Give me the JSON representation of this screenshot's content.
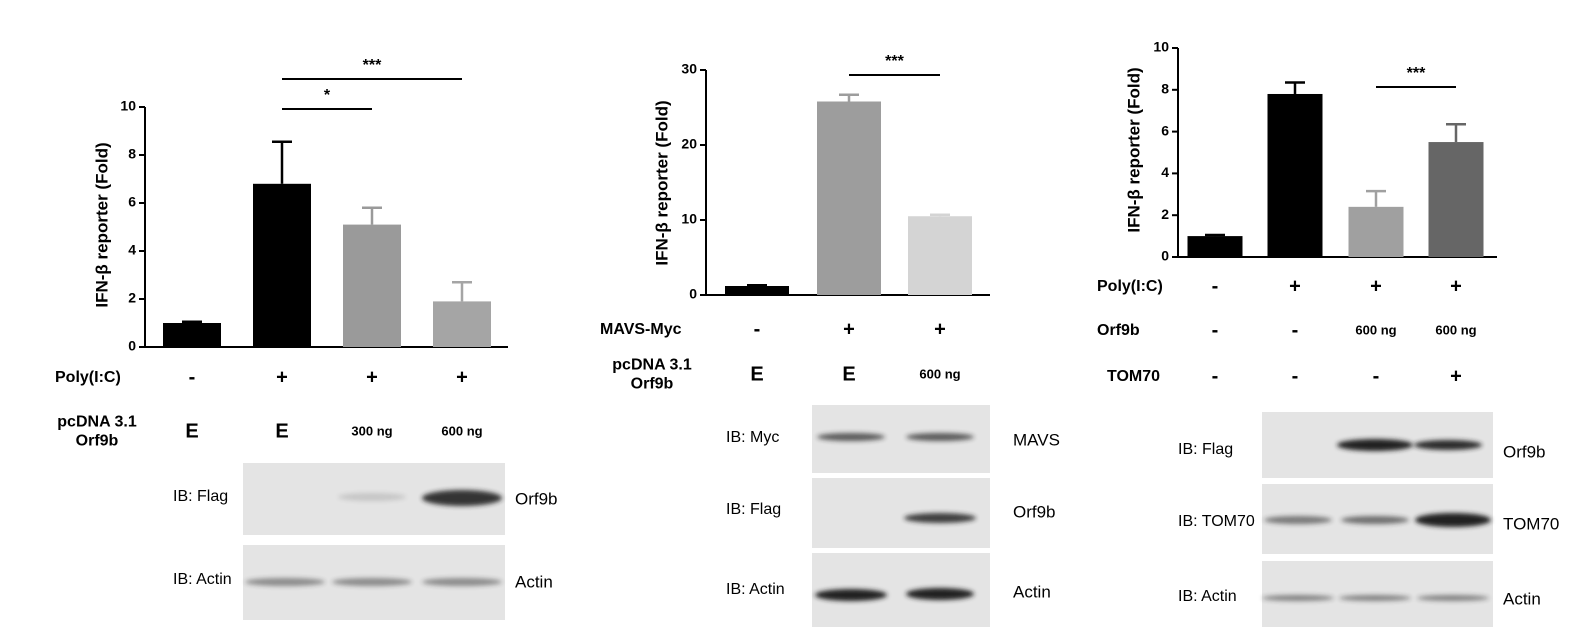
{
  "chart_data": [
    {
      "type": "bar",
      "y_label": "IFN-β reporter (Fold)",
      "values": [
        1.0,
        6.8,
        5.1,
        1.9
      ],
      "errors": [
        0.05,
        1.75,
        0.7,
        0.8
      ],
      "colors": [
        "#000000",
        "#000000",
        "#9a9a9a",
        "#a5a5a5"
      ],
      "ylim": [
        0,
        10
      ],
      "yticks": [
        0,
        2,
        4,
        6,
        8,
        10
      ],
      "significance": [
        {
          "label": "*",
          "from": 1,
          "to": 2
        },
        {
          "label": "***",
          "from": 1,
          "to": 3
        }
      ],
      "conditions": [
        {
          "label": [
            "Poly(I:C)"
          ],
          "values": [
            "-",
            "+",
            "+",
            "+"
          ]
        },
        {
          "label": [
            "pcDNA 3.1",
            "Orf9b"
          ],
          "values": [
            "E",
            "E",
            "300 ng",
            "600 ng"
          ]
        }
      ],
      "blots": [
        {
          "antibody": "IB: Flag",
          "protein": "Orf9b"
        },
        {
          "antibody": "IB: Actin",
          "protein": "Actin"
        }
      ]
    },
    {
      "type": "bar",
      "y_label": "IFN-β reporter (Fold)",
      "values": [
        1.2,
        25.8,
        10.5
      ],
      "errors": [
        0.1,
        0.9,
        0.2
      ],
      "colors": [
        "#000000",
        "#9d9d9d",
        "#d4d4d4"
      ],
      "ylim": [
        0,
        30
      ],
      "yticks": [
        0,
        10,
        20,
        30
      ],
      "significance": [
        {
          "label": "***",
          "from": 1,
          "to": 2
        }
      ],
      "conditions": [
        {
          "label": [
            "MAVS-Myc"
          ],
          "values": [
            "-",
            "+",
            "+"
          ]
        },
        {
          "label": [
            "pcDNA 3.1",
            "Orf9b"
          ],
          "values": [
            "E",
            "E",
            "600 ng"
          ]
        }
      ],
      "blots": [
        {
          "antibody": "IB: Myc",
          "protein": "MAVS"
        },
        {
          "antibody": "IB: Flag",
          "protein": "Orf9b"
        },
        {
          "antibody": "IB: Actin",
          "protein": "Actin"
        }
      ]
    },
    {
      "type": "bar",
      "y_label": "IFN-β reporter (Fold)",
      "values": [
        1.0,
        7.8,
        2.4,
        5.5
      ],
      "errors": [
        0.05,
        0.55,
        0.75,
        0.85
      ],
      "colors": [
        "#000000",
        "#000000",
        "#a0a0a0",
        "#666666"
      ],
      "ylim": [
        0,
        10
      ],
      "yticks": [
        0,
        2,
        4,
        6,
        8,
        10
      ],
      "significance": [
        {
          "label": "***",
          "from": 2,
          "to": 3
        }
      ],
      "conditions": [
        {
          "label": [
            "Poly(I:C)"
          ],
          "values": [
            "-",
            "+",
            "+",
            "+"
          ]
        },
        {
          "label": [
            "Orf9b"
          ],
          "values": [
            "-",
            "-",
            "600 ng",
            "600 ng"
          ]
        },
        {
          "label": [
            "TOM70"
          ],
          "values": [
            "-",
            "-",
            "-",
            "+"
          ]
        }
      ],
      "blots": [
        {
          "antibody": "IB: Flag",
          "protein": "Orf9b"
        },
        {
          "antibody": "IB: TOM70",
          "protein": "TOM70"
        },
        {
          "antibody": "IB: Actin",
          "protein": "Actin"
        }
      ]
    }
  ]
}
